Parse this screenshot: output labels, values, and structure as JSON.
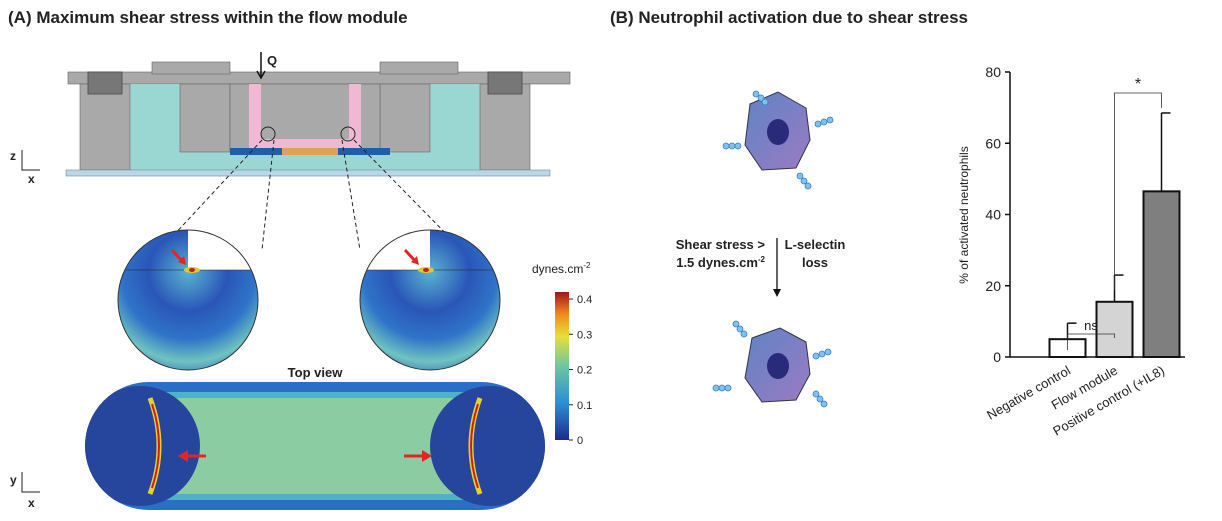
{
  "panel_a": {
    "title": "(A) Maximum shear stress within the flow module",
    "flow_label": "Q",
    "axis_z": "z",
    "axis_x_side": "x",
    "axis_y": "y",
    "axis_x_top": "x",
    "top_view": "Top view",
    "colorbar": {
      "unit": "dynes.cm",
      "unit_exp": "-2",
      "lim": [
        0,
        0.42
      ],
      "ticks": [
        0,
        0.1,
        0.2,
        0.3,
        0.4
      ]
    }
  },
  "panel_b": {
    "title": "(B) Neutrophil activation due to shear stress",
    "condition_1": "Shear stress >",
    "condition_2": "1.5 dynes.cm",
    "condition_exp": "-2",
    "effect_1": "L-selectin",
    "effect_2": "loss"
  },
  "chart_data": {
    "type": "bar",
    "ylabel": "% of activated neutrophils",
    "categories": [
      "Negative control",
      "Flow module",
      "Positive control (+IL8)"
    ],
    "values": [
      5,
      15.5,
      46.5
    ],
    "errors": [
      4.5,
      7.5,
      22
    ],
    "colors": [
      "#ffffff",
      "#d4d4d4",
      "#7f7f7f"
    ],
    "ylim": [
      0,
      80
    ],
    "yticks": [
      0,
      20,
      40,
      60,
      80
    ],
    "annotations": [
      "ns",
      "*"
    ]
  }
}
